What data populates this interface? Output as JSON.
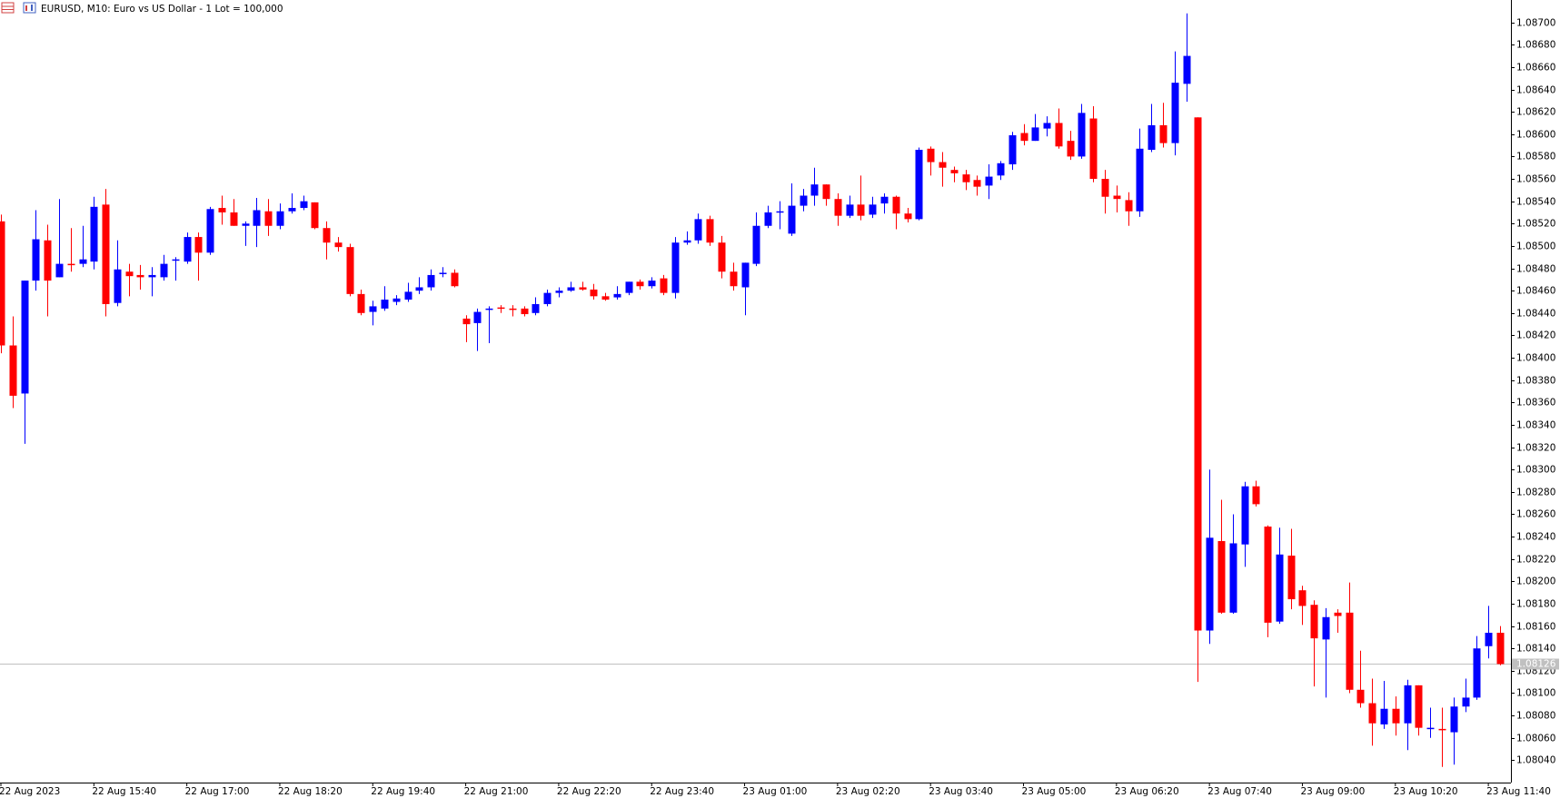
{
  "chart_data": {
    "type": "candlestick",
    "title": "EURUSD, M10:  Euro vs US Dollar - 1 Lot = 100,000",
    "up_color": "#0000ff",
    "down_color": "#ff0000",
    "categories": [
      "22 Aug 2023",
      null,
      null,
      null,
      null,
      null,
      null,
      null,
      "22 Aug 15:40",
      null,
      null,
      null,
      null,
      null,
      null,
      null,
      "22 Aug 17:00",
      null,
      null,
      null,
      null,
      null,
      null,
      null,
      "22 Aug 18:20",
      null,
      null,
      null,
      null,
      null,
      null,
      null,
      "22 Aug 19:40",
      null,
      null,
      null,
      null,
      null,
      null,
      null,
      "22 Aug 21:00",
      null,
      null,
      null,
      null,
      null,
      null,
      null,
      "22 Aug 22:20",
      null,
      null,
      null,
      null,
      null,
      null,
      null,
      "22 Aug 23:40",
      null,
      null,
      null,
      null,
      null,
      null,
      null,
      "23 Aug 01:00",
      null,
      null,
      null,
      null,
      null,
      null,
      null,
      "23 Aug 02:20",
      null,
      null,
      null,
      null,
      null,
      null,
      null,
      "23 Aug 03:40",
      null,
      null,
      null,
      null,
      null,
      null,
      null,
      "23 Aug 05:00",
      null,
      null,
      null,
      null,
      null,
      null,
      null,
      "23 Aug 06:20",
      null,
      null,
      null,
      null,
      null,
      null,
      null,
      "23 Aug 07:40",
      null,
      null,
      null,
      null,
      null,
      null,
      null,
      "23 Aug 09:00",
      null,
      null,
      null,
      null,
      null,
      null,
      null,
      "23 Aug 10:20",
      null,
      null,
      null,
      null,
      null,
      null,
      null,
      "23 Aug 11:40",
      null
    ],
    "open": [
      1.08522,
      1.08411,
      1.08368,
      1.08469,
      1.08505,
      1.08472,
      1.08484,
      1.08484,
      1.08486,
      1.08537,
      1.08449,
      1.08477,
      1.08474,
      1.08472,
      1.08472,
      1.08487,
      1.08486,
      1.08508,
      1.08494,
      1.08534,
      1.0853,
      1.08518,
      1.08518,
      1.08531,
      1.08518,
      1.08531,
      1.08534,
      1.08539,
      1.08516,
      1.08503,
      1.08499,
      1.08457,
      1.08441,
      1.08444,
      1.0845,
      1.08452,
      1.0846,
      1.08463,
      1.08475,
      1.08476,
      1.08435,
      1.08431,
      1.08443,
      1.08445,
      1.08444,
      1.08444,
      1.0844,
      1.08448,
      1.08458,
      1.0846,
      1.08463,
      1.08461,
      1.08455,
      1.08454,
      1.08458,
      1.08468,
      1.08464,
      1.08471,
      1.08458,
      1.08503,
      1.08505,
      1.08524,
      1.08503,
      1.08477,
      1.08463,
      1.08484,
      1.08518,
      1.0853,
      1.08511,
      1.08536,
      1.08545,
      1.08555,
      1.08542,
      1.08527,
      1.08537,
      1.08528,
      1.08538,
      1.08544,
      1.08529,
      1.08524,
      1.08587,
      1.08575,
      1.08568,
      1.08564,
      1.08559,
      1.08554,
      1.08563,
      1.08573,
      1.08601,
      1.08594,
      1.08605,
      1.0861,
      1.08594,
      1.0858,
      1.08614,
      1.0856,
      1.08545,
      1.08541,
      1.08531,
      1.08586,
      1.08608,
      1.08592,
      1.08645,
      1.08615,
      1.08156,
      1.08236,
      1.08172,
      1.08233,
      1.08285,
      1.08249,
      1.08164,
      1.08223,
      1.08192,
      1.08179,
      1.08148,
      1.08172,
      1.08172,
      1.08103,
      1.08091,
      1.08072,
      1.08086,
      1.08073,
      1.08107,
      1.08068,
      1.08068,
      1.08065,
      1.08088,
      1.08096,
      1.08142,
      1.08154
    ],
    "high": [
      1.08528,
      1.08437,
      1.08469,
      1.08532,
      1.08519,
      1.08542,
      1.08516,
      1.08518,
      1.08544,
      1.08551,
      1.08505,
      1.08484,
      1.08483,
      1.08481,
      1.08492,
      1.0849,
      1.08512,
      1.08512,
      1.08535,
      1.08545,
      1.08542,
      1.08522,
      1.08543,
      1.08542,
      1.08538,
      1.08547,
      1.08545,
      1.08539,
      1.08522,
      1.08508,
      1.08502,
      1.08461,
      1.08451,
      1.08464,
      1.08456,
      1.08467,
      1.08472,
      1.08479,
      1.08481,
      1.08479,
      1.08438,
      1.08444,
      1.08446,
      1.08447,
      1.08447,
      1.08446,
      1.08454,
      1.08461,
      1.08463,
      1.08468,
      1.08468,
      1.08466,
      1.08458,
      1.08464,
      1.08468,
      1.0847,
      1.08472,
      1.08474,
      1.08508,
      1.08513,
      1.08529,
      1.08527,
      1.08509,
      1.08485,
      1.08485,
      1.0853,
      1.08536,
      1.0854,
      1.08556,
      1.08551,
      1.0857,
      1.08555,
      1.08547,
      1.08545,
      1.08563,
      1.08544,
      1.08547,
      1.08545,
      1.08534,
      1.08588,
      1.08589,
      1.08584,
      1.08571,
      1.08568,
      1.08563,
      1.08573,
      1.08576,
      1.08602,
      1.08609,
      1.08618,
      1.08616,
      1.08623,
      1.08603,
      1.08627,
      1.08625,
      1.08568,
      1.08554,
      1.08548,
      1.08605,
      1.08627,
      1.08628,
      1.08674,
      1.08708,
      1.08615,
      1.083,
      1.08273,
      1.0826,
      1.08289,
      1.0829,
      1.0825,
      1.08248,
      1.08247,
      1.08196,
      1.08183,
      1.08176,
      1.08175,
      1.08199,
      1.08138,
      1.08113,
      1.08111,
      1.08097,
      1.08112,
      1.08107,
      1.08087,
      1.08087,
      1.08096,
      1.08113,
      1.08151,
      1.08178,
      1.0816
    ],
    "low": [
      1.08404,
      1.08355,
      1.08323,
      1.0846,
      1.08437,
      1.08472,
      1.08477,
      1.08481,
      1.08479,
      1.08437,
      1.08446,
      1.08455,
      1.08461,
      1.08455,
      1.08469,
      1.08469,
      1.08484,
      1.08469,
      1.08492,
      1.08519,
      1.08518,
      1.085,
      1.08499,
      1.08509,
      1.08515,
      1.08529,
      1.08532,
      1.08515,
      1.08488,
      1.08495,
      1.08455,
      1.08438,
      1.08429,
      1.08442,
      1.08447,
      1.0845,
      1.08457,
      1.0846,
      1.08472,
      1.08463,
      1.08414,
      1.08406,
      1.08413,
      1.0844,
      1.08437,
      1.08437,
      1.08438,
      1.08446,
      1.08454,
      1.08459,
      1.0846,
      1.08452,
      1.08451,
      1.08452,
      1.08456,
      1.08461,
      1.08462,
      1.08456,
      1.08453,
      1.08501,
      1.08502,
      1.085,
      1.08471,
      1.0846,
      1.08438,
      1.08482,
      1.08516,
      1.08515,
      1.08509,
      1.08531,
      1.08536,
      1.08536,
      1.08518,
      1.08525,
      1.08523,
      1.08525,
      1.08529,
      1.08515,
      1.08521,
      1.08523,
      1.08563,
      1.08553,
      1.08557,
      1.0855,
      1.08545,
      1.08542,
      1.08559,
      1.08568,
      1.0859,
      1.08594,
      1.08598,
      1.08587,
      1.08577,
      1.08578,
      1.08557,
      1.08529,
      1.0853,
      1.08518,
      1.08526,
      1.08584,
      1.08588,
      1.08581,
      1.08629,
      1.0811,
      1.08144,
      1.08171,
      1.08171,
      1.08213,
      1.08267,
      1.0815,
      1.08162,
      1.08175,
      1.08161,
      1.08106,
      1.08096,
      1.08154,
      1.081,
      1.08087,
      1.08053,
      1.08068,
      1.08062,
      1.08049,
      1.08062,
      1.0806,
      1.08034,
      1.08036,
      1.08083,
      1.08094,
      1.08131,
      1.08125
    ],
    "close": [
      1.08411,
      1.08366,
      1.08469,
      1.08506,
      1.08469,
      1.08484,
      1.08483,
      1.08488,
      1.08535,
      1.08448,
      1.08479,
      1.08473,
      1.08472,
      1.08474,
      1.08484,
      1.08488,
      1.08508,
      1.08494,
      1.08533,
      1.0853,
      1.08518,
      1.0852,
      1.08532,
      1.08518,
      1.08531,
      1.08534,
      1.0854,
      1.08516,
      1.08503,
      1.08499,
      1.08457,
      1.0844,
      1.08446,
      1.08452,
      1.08453,
      1.08459,
      1.08463,
      1.08474,
      1.08476,
      1.08464,
      1.0843,
      1.08441,
      1.08444,
      1.08444,
      1.08443,
      1.08439,
      1.08448,
      1.08458,
      1.0846,
      1.08463,
      1.08461,
      1.08455,
      1.08452,
      1.08457,
      1.08468,
      1.08464,
      1.08469,
      1.08458,
      1.08503,
      1.08505,
      1.08524,
      1.08503,
      1.08477,
      1.08464,
      1.08485,
      1.08518,
      1.0853,
      1.08531,
      1.08536,
      1.08545,
      1.08555,
      1.08542,
      1.08527,
      1.08537,
      1.08527,
      1.08537,
      1.08544,
      1.08529,
      1.08524,
      1.08586,
      1.08575,
      1.0857,
      1.08565,
      1.08557,
      1.08553,
      1.08562,
      1.08574,
      1.08599,
      1.08594,
      1.08606,
      1.0861,
      1.08589,
      1.0858,
      1.08619,
      1.0856,
      1.08544,
      1.08542,
      1.08531,
      1.08587,
      1.08608,
      1.08592,
      1.08646,
      1.0867,
      1.08156,
      1.08239,
      1.08172,
      1.08234,
      1.08285,
      1.08269,
      1.08163,
      1.08224,
      1.08184,
      1.08178,
      1.08149,
      1.08168,
      1.08169,
      1.08103,
      1.08091,
      1.08073,
      1.08086,
      1.08073,
      1.08107,
      1.08069,
      1.08069,
      1.08067,
      1.08088,
      1.08096,
      1.0814,
      1.08154,
      1.08126
    ],
    "last_price": {
      "value": 1.08126,
      "label": "1.08126"
    },
    "ylim": [
      1.0802,
      1.0872
    ],
    "yticks": [
      {
        "value": 1.0804,
        "label": "1.08040"
      },
      {
        "value": 1.0806,
        "label": "1.08060"
      },
      {
        "value": 1.0808,
        "label": "1.08080"
      },
      {
        "value": 1.081,
        "label": "1.08100"
      },
      {
        "value": 1.0812,
        "label": "1.08120"
      },
      {
        "value": 1.0814,
        "label": "1.08140"
      },
      {
        "value": 1.0816,
        "label": "1.08160"
      },
      {
        "value": 1.0818,
        "label": "1.08180"
      },
      {
        "value": 1.082,
        "label": "1.08200"
      },
      {
        "value": 1.0822,
        "label": "1.08220"
      },
      {
        "value": 1.0824,
        "label": "1.08240"
      },
      {
        "value": 1.0826,
        "label": "1.08260"
      },
      {
        "value": 1.0828,
        "label": "1.08280"
      },
      {
        "value": 1.083,
        "label": "1.08300"
      },
      {
        "value": 1.0832,
        "label": "1.08320"
      },
      {
        "value": 1.0834,
        "label": "1.08340"
      },
      {
        "value": 1.0836,
        "label": "1.08360"
      },
      {
        "value": 1.0838,
        "label": "1.08380"
      },
      {
        "value": 1.084,
        "label": "1.08400"
      },
      {
        "value": 1.0842,
        "label": "1.08420"
      },
      {
        "value": 1.0844,
        "label": "1.08440"
      },
      {
        "value": 1.0846,
        "label": "1.08460"
      },
      {
        "value": 1.0848,
        "label": "1.08480"
      },
      {
        "value": 1.085,
        "label": "1.08500"
      },
      {
        "value": 1.0852,
        "label": "1.08520"
      },
      {
        "value": 1.0854,
        "label": "1.08540"
      },
      {
        "value": 1.0856,
        "label": "1.08560"
      },
      {
        "value": 1.0858,
        "label": "1.08580"
      },
      {
        "value": 1.086,
        "label": "1.08600"
      },
      {
        "value": 1.0862,
        "label": "1.08620"
      },
      {
        "value": 1.0864,
        "label": "1.08640"
      },
      {
        "value": 1.0866,
        "label": "1.08660"
      },
      {
        "value": 1.0868,
        "label": "1.08680"
      },
      {
        "value": 1.087,
        "label": "1.08700"
      }
    ],
    "grid": false
  }
}
